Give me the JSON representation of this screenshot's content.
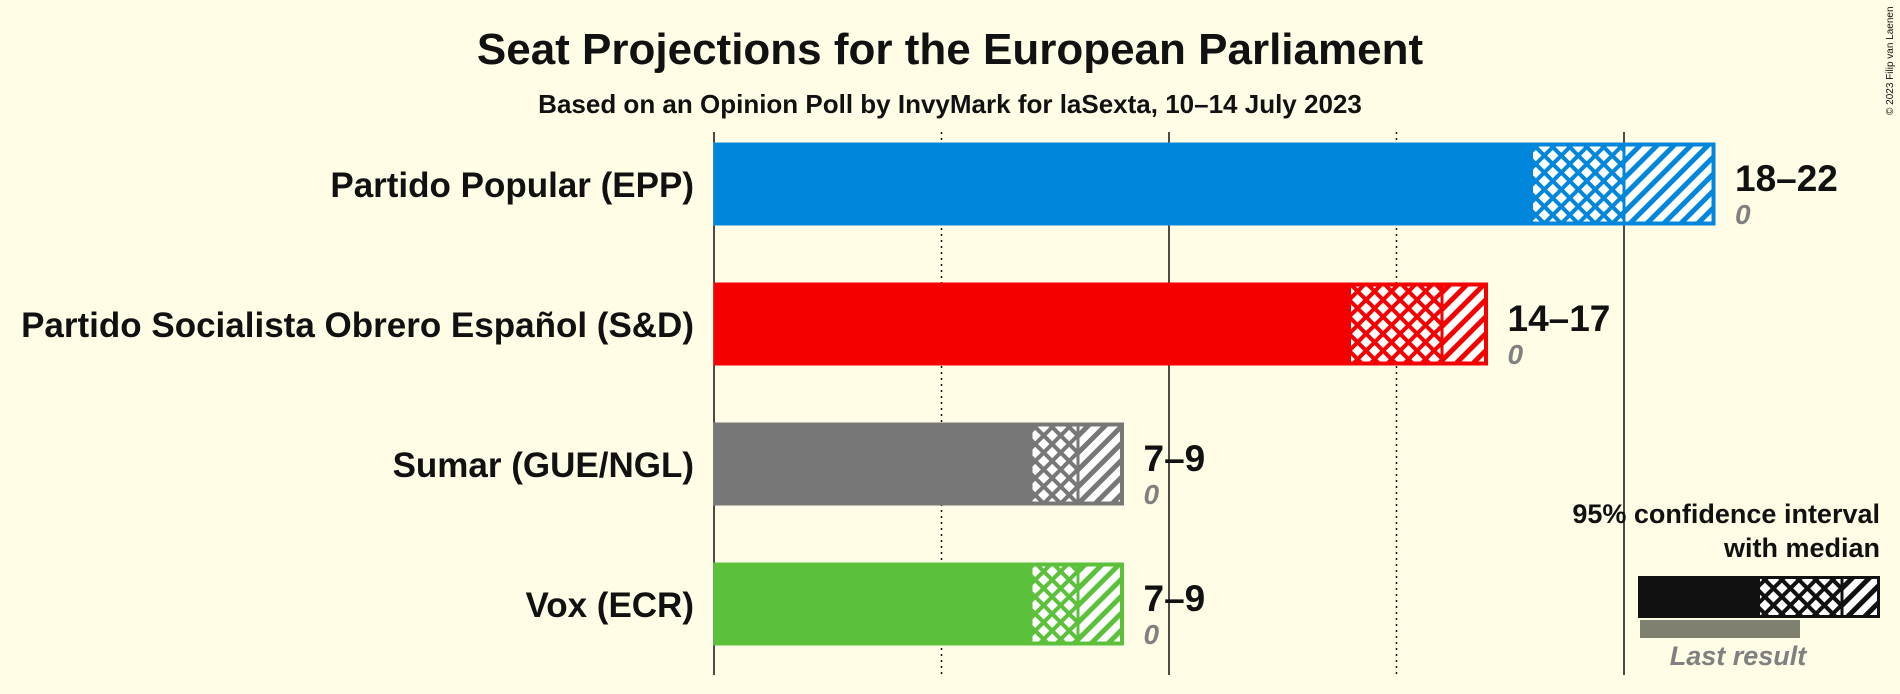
{
  "chart_data": {
    "type": "bar",
    "title": "Seat Projections for the European Parliament",
    "subtitle": "Based on an Opinion Poll by InvyMark for laSexta, 10–14 July 2023",
    "copyright": "© 2023 Filip van Laenen",
    "xlim": [
      0,
      22
    ],
    "grid": {
      "solid": [
        0,
        10,
        20
      ],
      "dotted": [
        5,
        15
      ]
    },
    "parties": [
      {
        "name": "Partido Popular (EPP)",
        "color": "#0087DC",
        "ci_low": 18,
        "median": 20,
        "ci_high": 22,
        "range_label": "18–22",
        "last_result_label": "0",
        "last_result": 0
      },
      {
        "name": "Partido Socialista Obrero Español (S&D)",
        "color": "#F50000",
        "ci_low": 14,
        "median": 16,
        "ci_high": 17,
        "range_label": "14–17",
        "last_result_label": "0",
        "last_result": 0
      },
      {
        "name": "Sumar (GUE/NGL)",
        "color": "#777777",
        "ci_low": 7,
        "median": 8,
        "ci_high": 9,
        "range_label": "7–9",
        "last_result_label": "0",
        "last_result": 0
      },
      {
        "name": "Vox (ECR)",
        "color": "#5BC13A",
        "ci_low": 7,
        "median": 8,
        "ci_high": 9,
        "range_label": "7–9",
        "last_result_label": "0",
        "last_result": 0
      }
    ],
    "legend": {
      "line1": "95% confidence interval",
      "line2": "with median",
      "last_result": "Last result",
      "color": "#111111",
      "last_color": "#808080"
    }
  }
}
